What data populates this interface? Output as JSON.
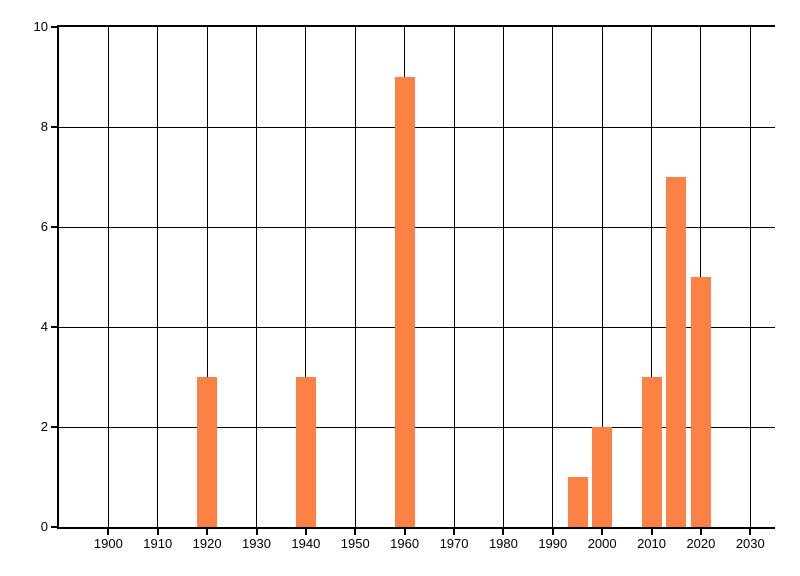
{
  "chart_data": {
    "type": "bar",
    "title": "",
    "xlabel": "",
    "ylabel": "",
    "x": [
      1920,
      1940,
      1960,
      1995,
      2000,
      2010,
      2015,
      2020
    ],
    "values": [
      3,
      3,
      9,
      1,
      2,
      3,
      7,
      5
    ],
    "bar_width_x": 4,
    "xlim": [
      1890,
      2035
    ],
    "ylim": [
      0,
      10
    ],
    "x_ticks": [
      1900,
      1910,
      1920,
      1930,
      1940,
      1950,
      1960,
      1970,
      1980,
      1990,
      2000,
      2010,
      2020,
      2030
    ],
    "y_ticks": [
      0,
      2,
      4,
      6,
      8,
      10
    ],
    "grid": true,
    "legend_position": "none",
    "colors": {
      "bar": "#FC8145",
      "grid": "#000000",
      "axis": "#000000",
      "tick_label": "#000000",
      "background": "#FFFFFF"
    }
  }
}
